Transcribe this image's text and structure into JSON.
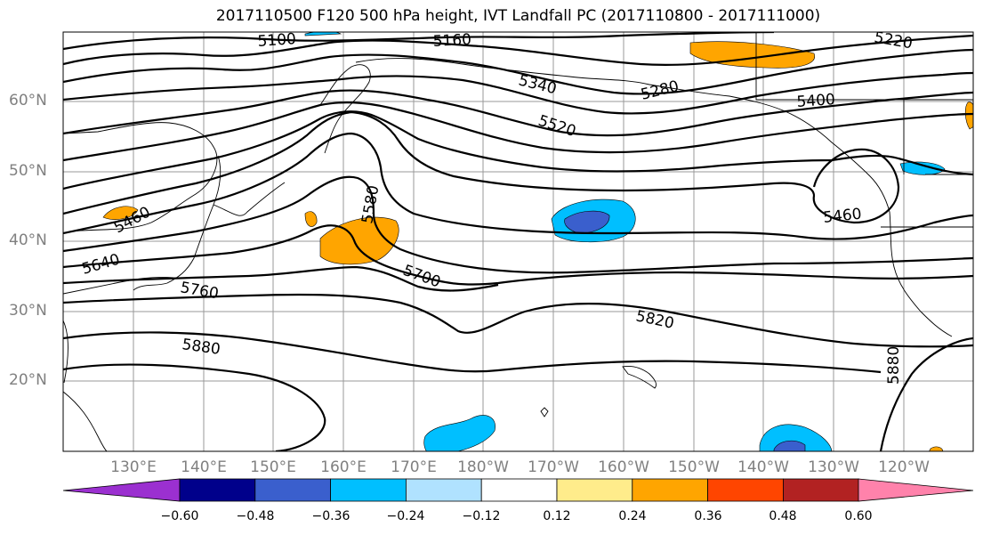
{
  "title": "2017110500 F120 500 hPa height, IVT Landfall PC (2017110800 - 2017111000)",
  "map": {
    "lat_labels": [
      "60°N",
      "50°N",
      "40°N",
      "30°N",
      "20°N"
    ],
    "lon_labels": [
      "130°E",
      "140°E",
      "150°E",
      "160°E",
      "170°E",
      "180°W",
      "170°W",
      "160°W",
      "150°W",
      "140°W",
      "130°W",
      "120°W"
    ],
    "contour_labels": [
      "5100",
      "5160",
      "5220",
      "5280",
      "5340",
      "5400",
      "5460",
      "5460",
      "5520",
      "5580",
      "5640",
      "5700",
      "5760",
      "5820",
      "5880",
      "5880"
    ]
  },
  "colorbar": {
    "ticks": [
      "−0.60",
      "−0.48",
      "−0.36",
      "−0.24",
      "−0.12",
      "0.12",
      "0.24",
      "0.36",
      "0.48",
      "0.60"
    ],
    "colors": [
      "#9b30d0",
      "#00008b",
      "#3a5fcd",
      "#00bfff",
      "#b0e2ff",
      "#ffffff",
      "#ffec8b",
      "#ffa500",
      "#ff4500",
      "#b22222",
      "#ff82ab"
    ]
  }
}
